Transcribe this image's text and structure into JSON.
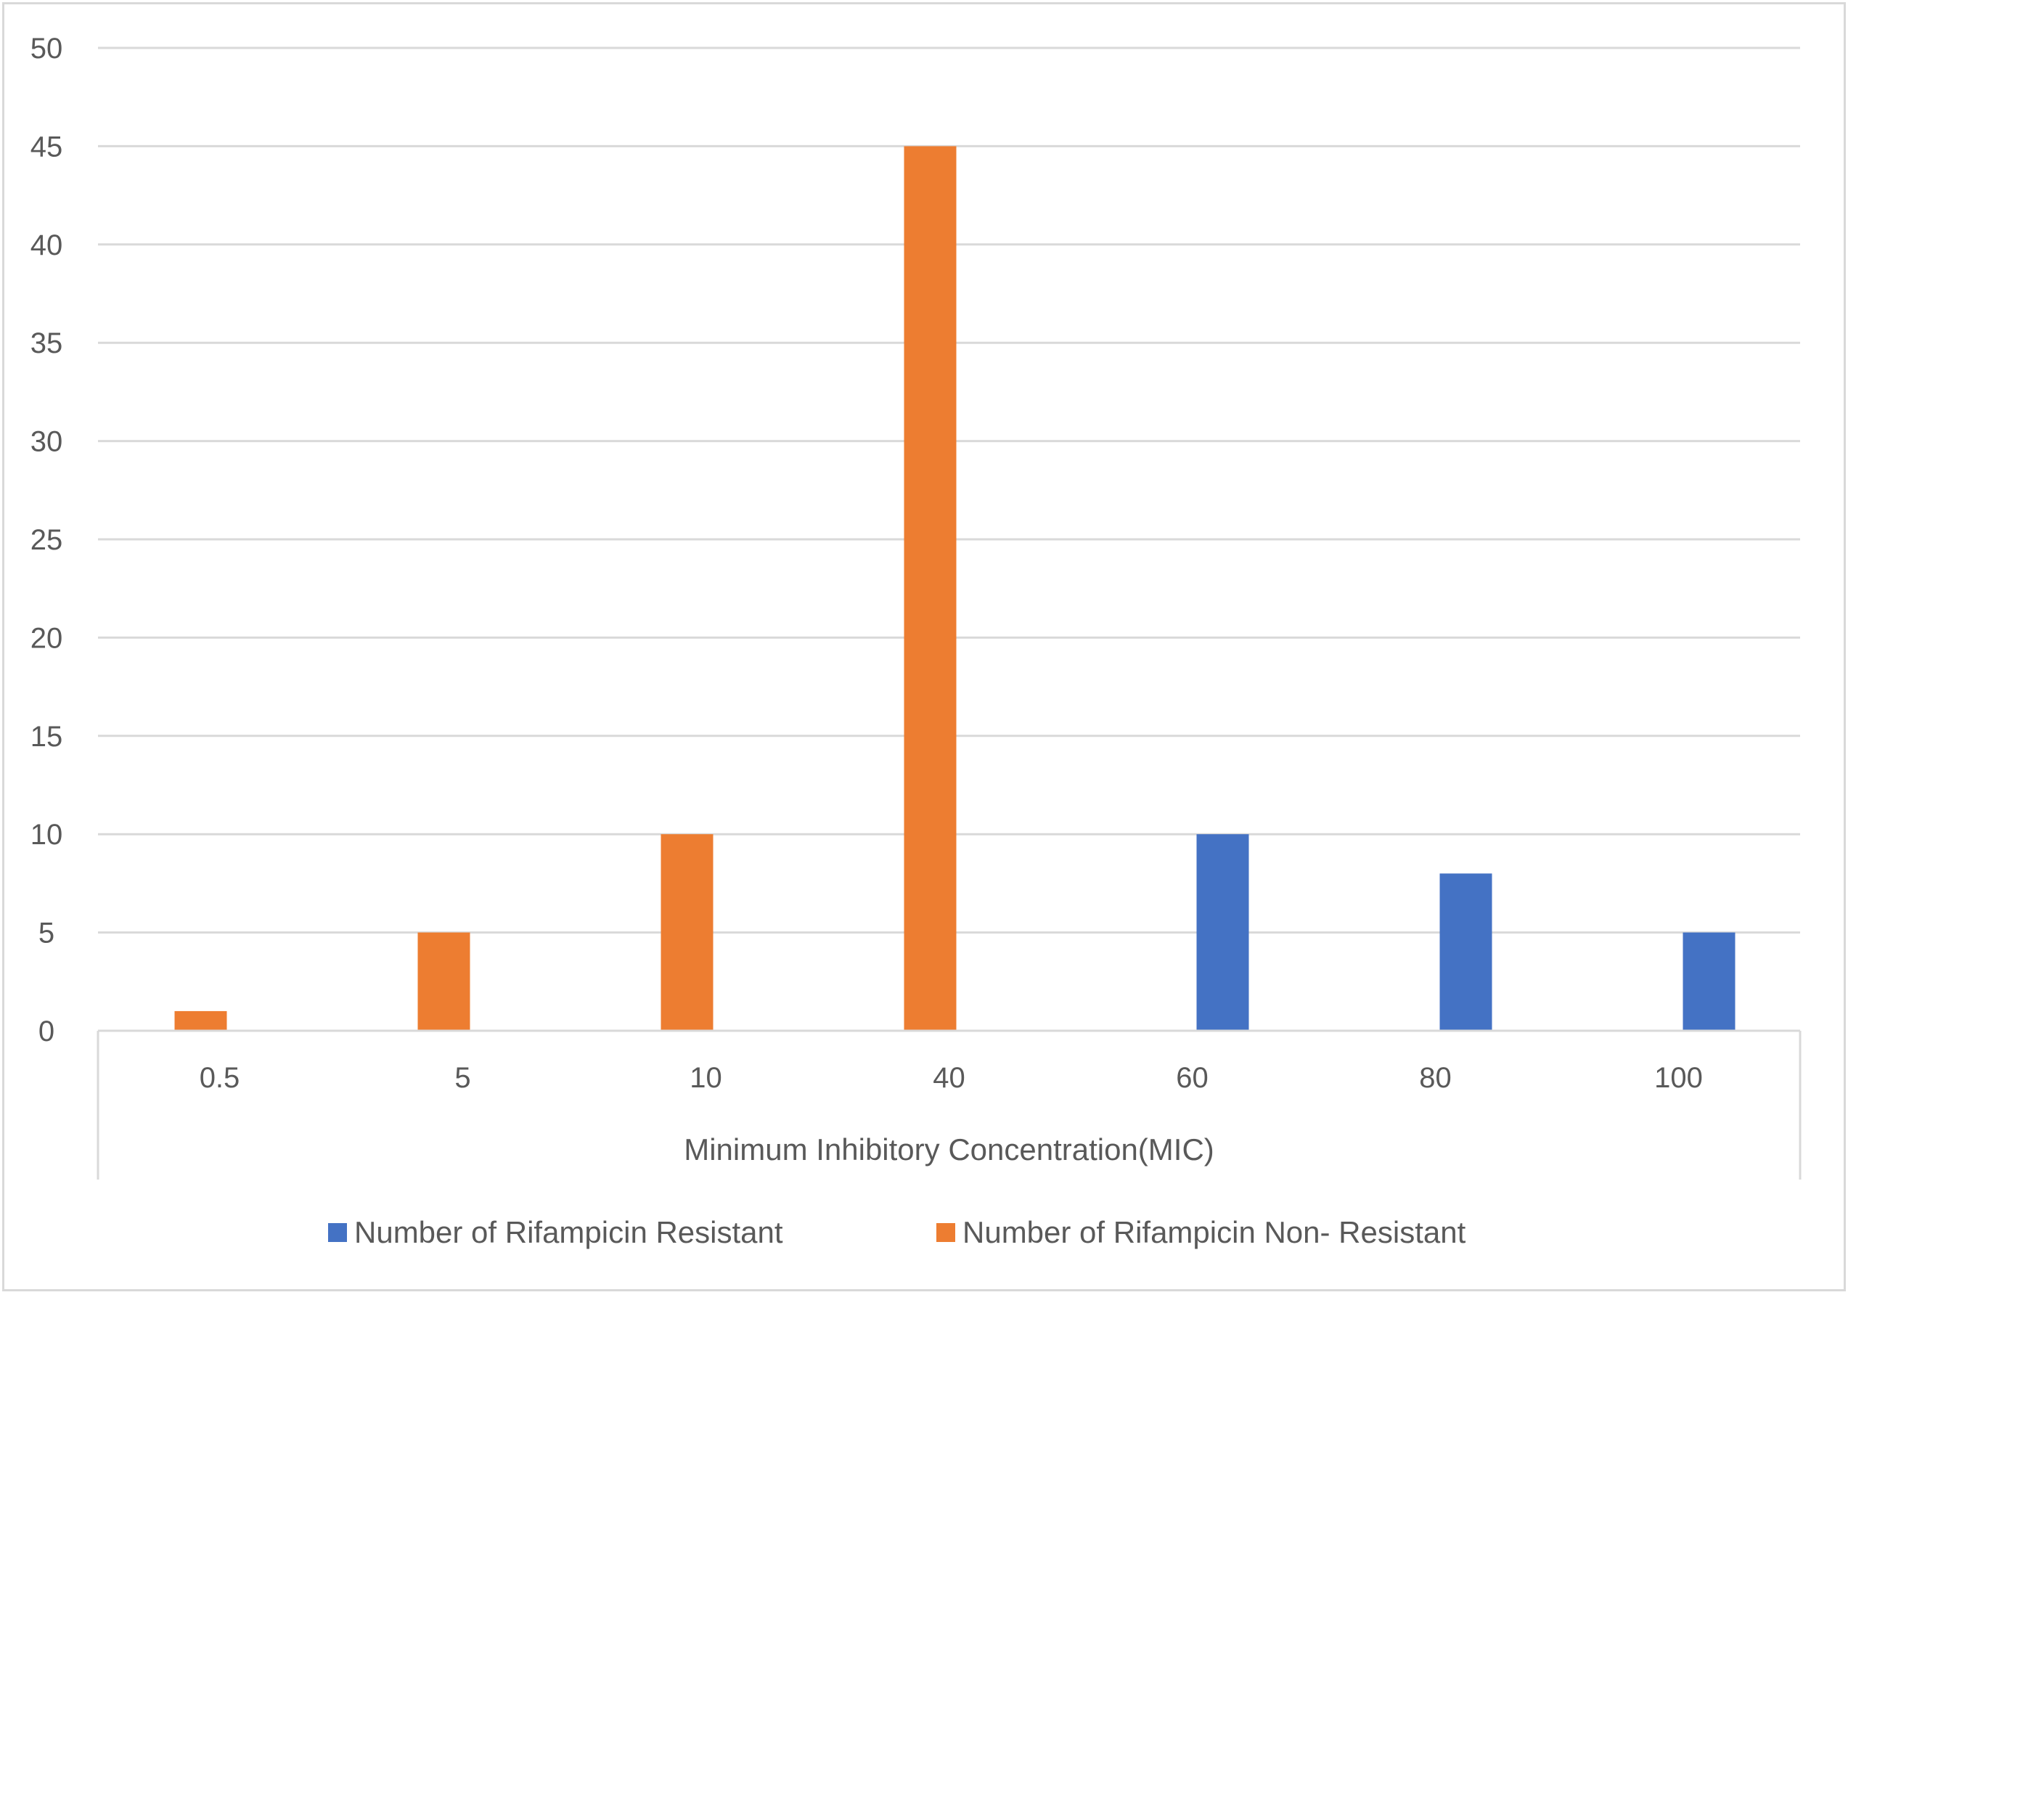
{
  "chart_data": {
    "type": "bar",
    "categories": [
      "0.5",
      "5",
      "10",
      "40",
      "60",
      "80",
      "100"
    ],
    "series": [
      {
        "name": "Number of Rifampicin Resistant",
        "color": "#4472c4",
        "values": [
          0,
          0,
          0,
          0,
          10,
          8,
          5
        ]
      },
      {
        "name": "Number of Rifampicin Non- Resistant",
        "color": "#ed7d31",
        "values": [
          1,
          5,
          10,
          45,
          0,
          0,
          0
        ]
      }
    ],
    "title": "",
    "xlabel": "Minimum Inhibitory Concentration(MIC)",
    "ylabel": "",
    "ylim": [
      0,
      50
    ],
    "yticks": [
      0,
      5,
      10,
      15,
      20,
      25,
      30,
      35,
      40,
      45,
      50
    ],
    "grid": true,
    "legend_position": "bottom",
    "gridline_color": "#d9d9d9",
    "text_color": "#595959"
  }
}
